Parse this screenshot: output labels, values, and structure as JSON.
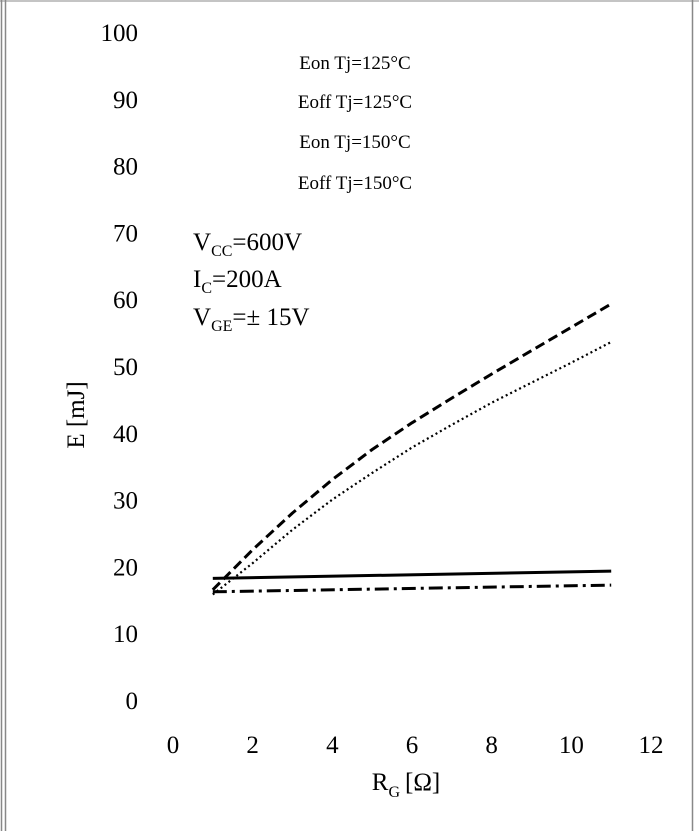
{
  "chart_data": {
    "type": "line",
    "title": "",
    "xlabel": "R",
    "xlabel_sub": "G",
    "xlabel_unit": "[Ω]",
    "ylabel": "E [mJ]",
    "xlim": [
      0,
      12
    ],
    "ylim": [
      0,
      100
    ],
    "xticks": [
      "0",
      "2",
      "4",
      "6",
      "8",
      "10",
      "12"
    ],
    "yticks": [
      "0",
      "10",
      "20",
      "30",
      "40",
      "50",
      "60",
      "70",
      "80",
      "90",
      "100"
    ],
    "grid": false,
    "legend_position": "top-center",
    "series": [
      {
        "name": "Eon Tj=125°C",
        "style": "solid",
        "x": [
          1,
          11
        ],
        "y": [
          18.2,
          19.3
        ]
      },
      {
        "name": "Eoff Tj=125°C",
        "style": "dashdot",
        "x": [
          1,
          11
        ],
        "y": [
          16.2,
          17.2
        ]
      },
      {
        "name": "Eon Tj=150°C",
        "style": "dashed",
        "x": [
          1,
          2,
          3,
          4,
          5,
          6,
          7,
          8,
          9,
          10,
          11
        ],
        "y": [
          16.5,
          22.5,
          28.0,
          33.0,
          37.5,
          41.5,
          45.2,
          48.8,
          52.3,
          55.8,
          59.3
        ]
      },
      {
        "name": "Eoff Tj=150°C",
        "style": "dotted",
        "x": [
          1,
          2,
          3,
          4,
          5,
          6,
          7,
          8,
          9,
          10,
          11
        ],
        "y": [
          15.8,
          20.5,
          25.5,
          30.0,
          34.0,
          37.8,
          41.2,
          44.5,
          47.5,
          50.5,
          53.6
        ]
      }
    ],
    "conditions": [
      {
        "main": "V",
        "sub": "CC",
        "rest": "=600V"
      },
      {
        "main": "I",
        "sub": "C",
        "rest": "=200A"
      },
      {
        "main": "V",
        "sub": "GE",
        "rest": "=± 15V"
      }
    ]
  }
}
